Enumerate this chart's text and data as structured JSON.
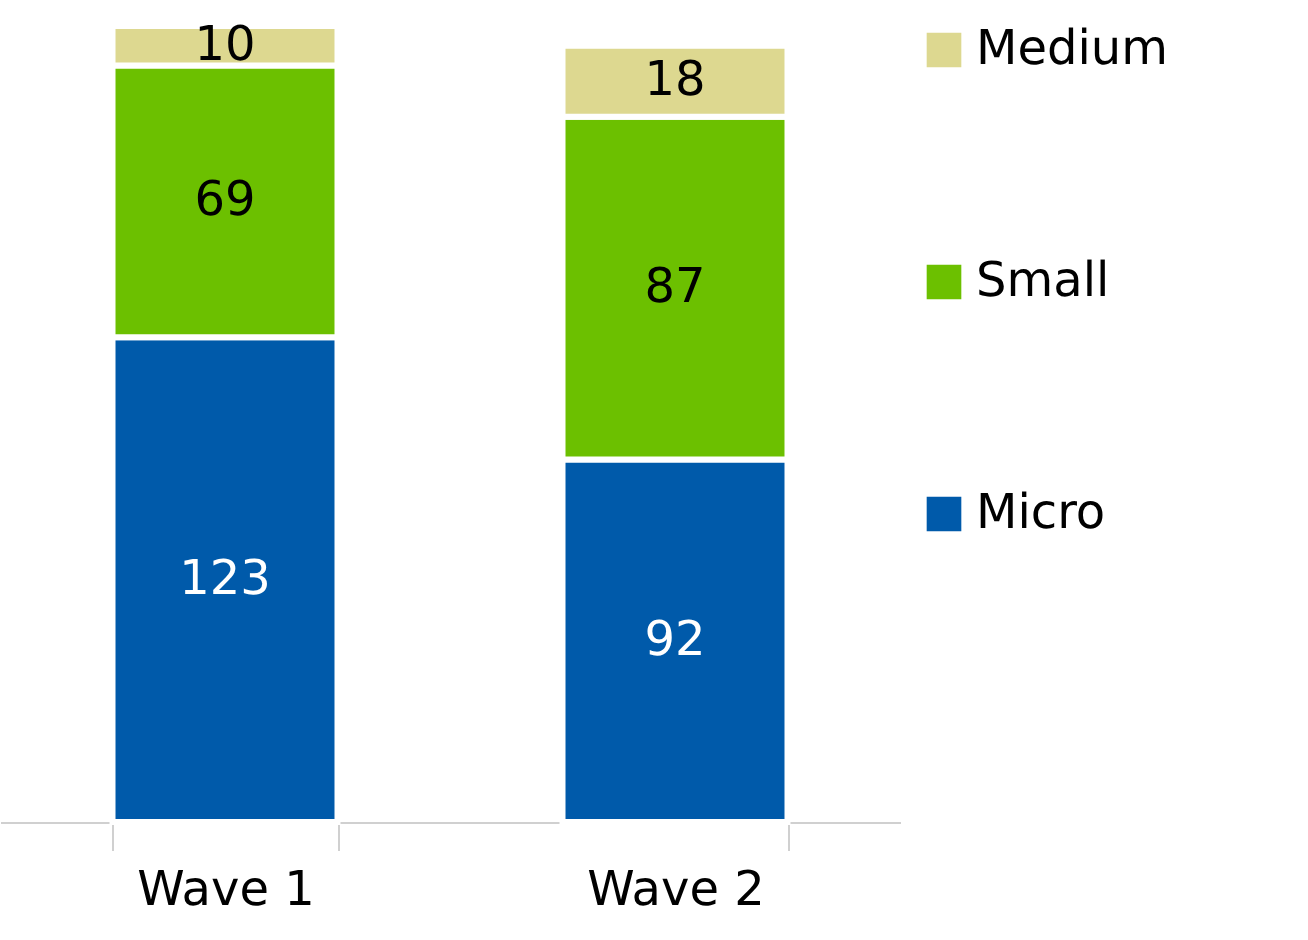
{
  "chart_data": {
    "type": "bar",
    "stacked": true,
    "data_labels": true,
    "legend": "right",
    "grid": false,
    "categories": [
      "Wave 1",
      "Wave 2"
    ],
    "series": [
      {
        "name": "Micro",
        "color": "#005aaa",
        "values": [
          123,
          92
        ]
      },
      {
        "name": "Small",
        "color": "#6cc000",
        "values": [
          69,
          87
        ]
      },
      {
        "name": "Medium",
        "color": "#ddd890",
        "values": [
          10,
          18
        ]
      }
    ]
  }
}
